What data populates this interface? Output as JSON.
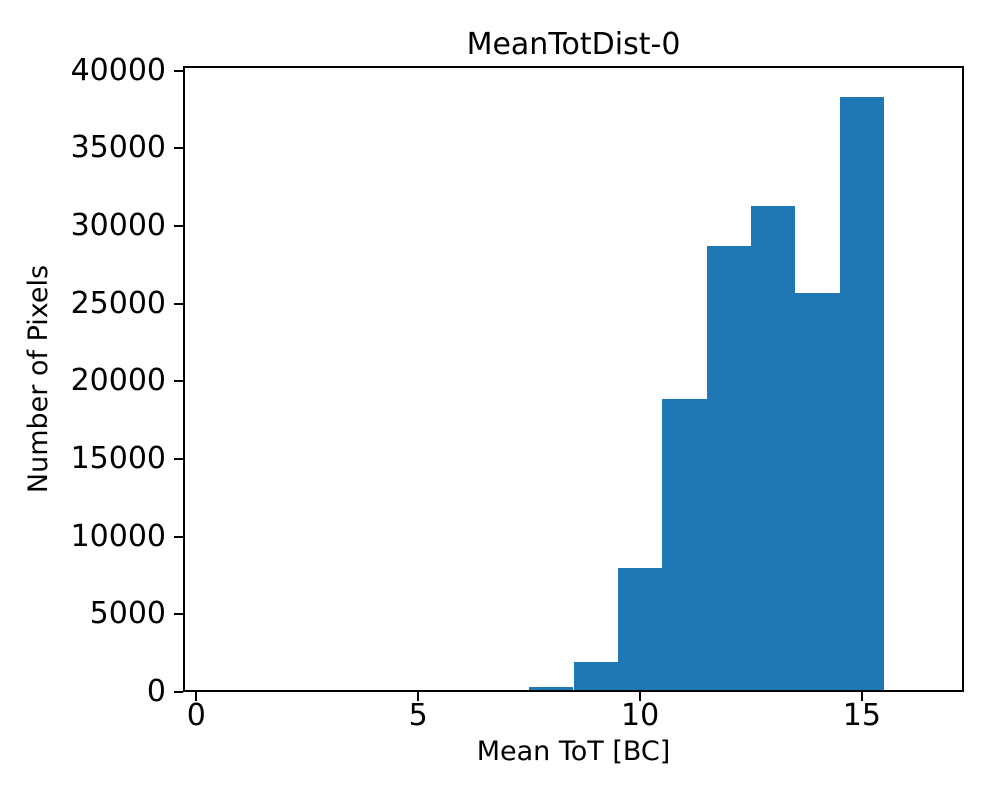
{
  "chart_data": {
    "type": "bar",
    "subtype": "histogram",
    "title": "MeanTotDist-0",
    "xlabel": "Mean ToT [BC]",
    "ylabel": "Number of Pixels",
    "bin_edges": [
      6.5,
      7.5,
      8.5,
      9.5,
      10.5,
      11.5,
      12.5,
      13.5,
      14.5,
      15.5
    ],
    "bin_centers": [
      7,
      8,
      9,
      10,
      11,
      12,
      13,
      14,
      15
    ],
    "values": [
      120,
      300,
      1920,
      7970,
      18850,
      28740,
      31320,
      25680,
      38280
    ],
    "x_ticks": [
      0,
      5,
      10,
      15
    ],
    "y_ticks": [
      0,
      5000,
      10000,
      15000,
      20000,
      25000,
      30000,
      35000,
      40000
    ],
    "xlim": [
      -0.3,
      17.3
    ],
    "ylim": [
      0,
      40300
    ],
    "grid": false,
    "legend_position": "none",
    "bar_color": "#1f77b4",
    "spine_color": "#000000",
    "background_color": "#ffffff"
  }
}
